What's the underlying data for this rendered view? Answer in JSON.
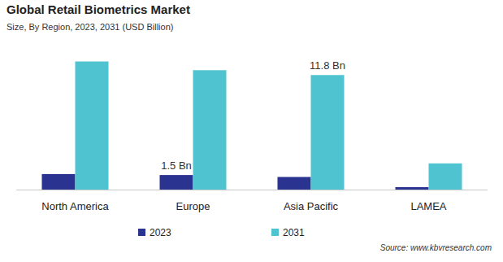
{
  "chart_data": {
    "type": "bar",
    "title": "Global Retail Biometrics Market",
    "subtitle": "Size, By Region, 2023, 2031 (USD Billion)",
    "source": "Source: www.kbvresearch.com",
    "categories": [
      "North America",
      "Europe",
      "Asia Pacific",
      "LAMEA"
    ],
    "series": [
      {
        "name": "2023",
        "color": "#2b3390",
        "values": [
          1.6,
          1.5,
          1.3,
          0.25
        ],
        "value_labels": [
          null,
          "1.5 Bn",
          null,
          null
        ]
      },
      {
        "name": "2031",
        "color": "#4fc3cf",
        "values": [
          13.2,
          12.3,
          11.8,
          2.7
        ],
        "value_labels": [
          null,
          null,
          "11.8 Bn",
          null
        ]
      }
    ],
    "ylim": [
      0,
      14
    ],
    "tick_labels": "x",
    "grid": false,
    "legend": "bottom",
    "data_labels": true
  }
}
